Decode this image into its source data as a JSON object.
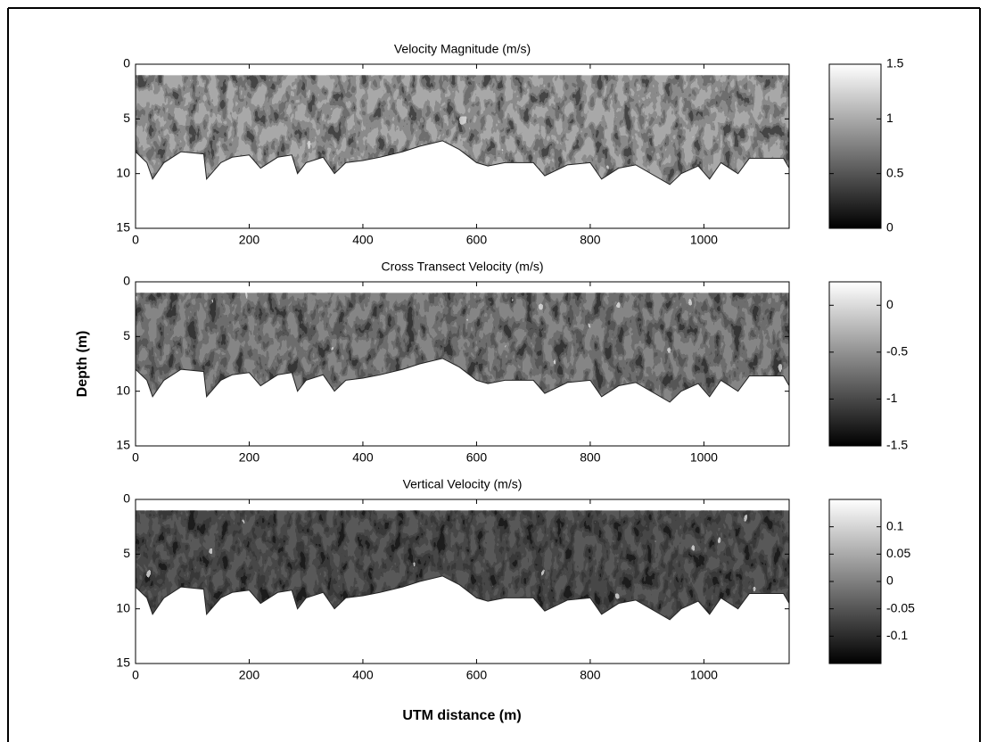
{
  "ylabel": "Depth (m)",
  "xlabel": "UTM distance (m)",
  "profile": {
    "top_depth": 1,
    "x": [
      0,
      20,
      30,
      50,
      80,
      120,
      125,
      150,
      170,
      200,
      220,
      250,
      275,
      285,
      300,
      330,
      350,
      370,
      400,
      430,
      470,
      500,
      540,
      570,
      600,
      620,
      650,
      700,
      720,
      760,
      800,
      820,
      850,
      880,
      940,
      960,
      990,
      1010,
      1030,
      1060,
      1080,
      1140,
      1150
    ],
    "bottom_depth": [
      8,
      9,
      10.5,
      9,
      8,
      8.2,
      10.5,
      9,
      8.5,
      8.3,
      9.5,
      8.5,
      8.3,
      10,
      9,
      8.5,
      10,
      9,
      8.8,
      8.5,
      8,
      7.5,
      7,
      7.8,
      9,
      9.3,
      9,
      9,
      10.2,
      9.2,
      9,
      10.5,
      9.5,
      9.2,
      11,
      10,
      9.3,
      10.5,
      9,
      10,
      8.6,
      8.6,
      9.5
    ]
  },
  "chart_data": [
    {
      "type": "contour",
      "title": "Velocity Magnitude (m/s)",
      "fill_color": "#a8a8a8",
      "colormap": "gray",
      "xlim": [
        0,
        1150
      ],
      "xticks": [
        0,
        200,
        400,
        600,
        800,
        1000
      ],
      "ylim": [
        0,
        15
      ],
      "yticks": [
        0,
        5,
        10,
        15
      ],
      "y_inverted": true,
      "clim": [
        0,
        1.5
      ],
      "cticks": [
        0,
        0.5,
        1,
        1.5
      ]
    },
    {
      "type": "contour",
      "title": "Cross Transect Velocity (m/s)",
      "fill_color": "#858585",
      "colormap": "gray",
      "xlim": [
        0,
        1150
      ],
      "xticks": [
        0,
        200,
        400,
        600,
        800,
        1000
      ],
      "ylim": [
        0,
        15
      ],
      "yticks": [
        0,
        5,
        10,
        15
      ],
      "y_inverted": true,
      "clim": [
        -1.5,
        0.25
      ],
      "cticks": [
        0,
        -0.5,
        -1,
        -1.5
      ]
    },
    {
      "type": "contour",
      "title": "Vertical Velocity (m/s)",
      "fill_color": "#595959",
      "colormap": "gray",
      "xlim": [
        0,
        1150
      ],
      "xticks": [
        0,
        200,
        400,
        600,
        800,
        1000
      ],
      "ylim": [
        0,
        15
      ],
      "yticks": [
        0,
        5,
        10,
        15
      ],
      "y_inverted": true,
      "clim": [
        -0.15,
        0.15
      ],
      "cticks": [
        0.1,
        0.05,
        0,
        -0.05,
        -0.1
      ]
    }
  ]
}
